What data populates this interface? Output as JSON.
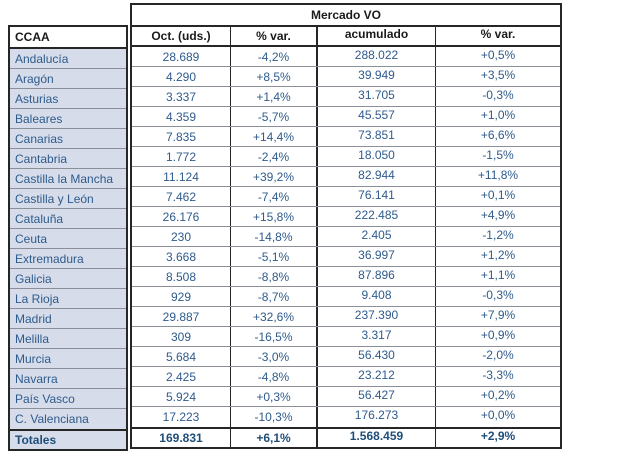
{
  "chart_data": {
    "type": "table",
    "title": "Mercado VO",
    "columns": [
      "CCAA",
      "Oct. (uds.)",
      "% var.",
      "acumulado",
      "% var."
    ],
    "rows": [
      [
        "Andalucía",
        "28.689",
        "-4,2%",
        "288.022",
        "+0,5%"
      ],
      [
        "Aragón",
        "4.290",
        "+8,5%",
        "39.949",
        "+3,5%"
      ],
      [
        "Asturias",
        "3.337",
        "+1,4%",
        "31.705",
        "-0,3%"
      ],
      [
        "Baleares",
        "4.359",
        "-5,7%",
        "45.557",
        "+1,0%"
      ],
      [
        "Canarias",
        "7.835",
        "+14,4%",
        "73.851",
        "+6,6%"
      ],
      [
        "Cantabria",
        "1.772",
        "-2,4%",
        "18.050",
        "-1,5%"
      ],
      [
        "Castilla la Mancha",
        "11.124",
        "+39,2%",
        "82.944",
        "+11,8%"
      ],
      [
        "Castilla y León",
        "7.462",
        "-7,4%",
        "76.141",
        "+0,1%"
      ],
      [
        "Cataluña",
        "26.176",
        "+15,8%",
        "222.485",
        "+4,9%"
      ],
      [
        "Ceuta",
        "230",
        "-14,8%",
        "2.405",
        "-1,2%"
      ],
      [
        "Extremadura",
        "3.668",
        "-5,1%",
        "36.997",
        "+1,2%"
      ],
      [
        "Galicia",
        "8.508",
        "-8,8%",
        "87.896",
        "+1,1%"
      ],
      [
        "La Rioja",
        "929",
        "-8,7%",
        "9.408",
        "-0,3%"
      ],
      [
        "Madrid",
        "29.887",
        "+32,6%",
        "237.390",
        "+7,9%"
      ],
      [
        "Melilla",
        "309",
        "-16,5%",
        "3.317",
        "+0,9%"
      ],
      [
        "Murcia",
        "5.684",
        "-3,0%",
        "56.430",
        "-2,0%"
      ],
      [
        "Navarra",
        "2.425",
        "-4,8%",
        "23.212",
        "-3,3%"
      ],
      [
        "País Vasco",
        "5.924",
        "+0,3%",
        "56.427",
        "+0,2%"
      ],
      [
        "C. Valenciana",
        "17.223",
        "-10,3%",
        "176.273",
        "+0,0%"
      ]
    ],
    "totals": [
      "Totales",
      "169.831",
      "+6,1%",
      "1.568.459",
      "+2,9%"
    ]
  },
  "colors": {
    "row_fill": "#D6DCE9",
    "value_text": "#2E5B8C",
    "totals_text": "#1F4E79",
    "header_text": "#1a1a1a",
    "border_dark": "#262626",
    "border_light": "#8a8f98"
  }
}
